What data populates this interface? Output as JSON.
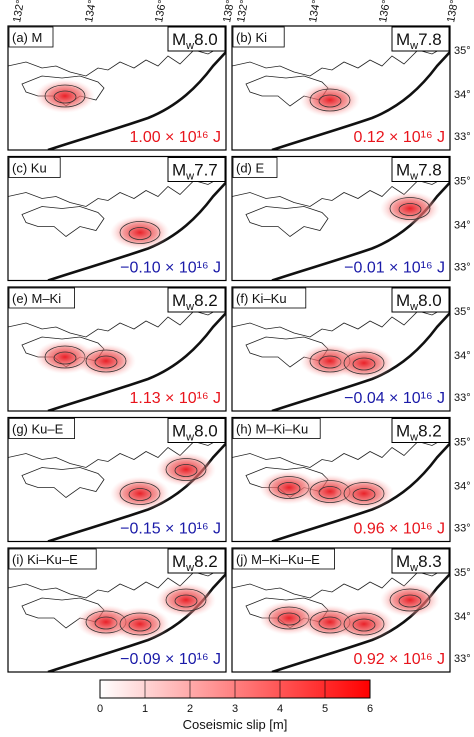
{
  "mw_symbol": "M",
  "mw_subscript": "w",
  "panels": [
    {
      "label": "(a) M",
      "magnitude": "8.0",
      "energy": "1.00 × 10¹⁶ J",
      "energy_color": "#e8141c"
    },
    {
      "label": "(b) Ki",
      "magnitude": "7.8",
      "energy": "0.12 × 10¹⁶ J",
      "energy_color": "#e8141c"
    },
    {
      "label": "(c) Ku",
      "magnitude": "7.7",
      "energy": "−0.10 × 10¹⁶ J",
      "energy_color": "#1a1aa8"
    },
    {
      "label": "(d) E",
      "magnitude": "7.8",
      "energy": "−0.01 × 10¹⁶ J",
      "energy_color": "#1a1aa8"
    },
    {
      "label": "(e) M–Ki",
      "magnitude": "8.2",
      "energy": "1.13 × 10¹⁶ J",
      "energy_color": "#e8141c"
    },
    {
      "label": "(f) Ki–Ku",
      "magnitude": "8.0",
      "energy": "−0.04 × 10¹⁶ J",
      "energy_color": "#1a1aa8"
    },
    {
      "label": "(g) Ku–E",
      "magnitude": "8.0",
      "energy": "−0.15 × 10¹⁶ J",
      "energy_color": "#1a1aa8"
    },
    {
      "label": "(h) M–Ki–Ku",
      "magnitude": "8.2",
      "energy": "0.96 × 10¹⁶ J",
      "energy_color": "#e8141c"
    },
    {
      "label": "(i) Ki–Ku–E",
      "magnitude": "8.2",
      "energy": "−0.09 × 10¹⁶ J",
      "energy_color": "#1a1aa8"
    },
    {
      "label": "(j) M–Ki–Ku–E",
      "magnitude": "8.3",
      "energy": "0.92 × 10¹⁶ J",
      "energy_color": "#e8141c"
    }
  ],
  "longitude_ticks": [
    "132°",
    "134°",
    "136°",
    "138°"
  ],
  "latitude_ticks": [
    "35°",
    "34°",
    "33°"
  ],
  "colorbar": {
    "label": "Coseismic slip [m]",
    "ticks": [
      0,
      1,
      2,
      3,
      4,
      5,
      6
    ],
    "range": [
      0,
      6
    ],
    "colors": [
      "#ffffff",
      "#ff0000"
    ]
  }
}
